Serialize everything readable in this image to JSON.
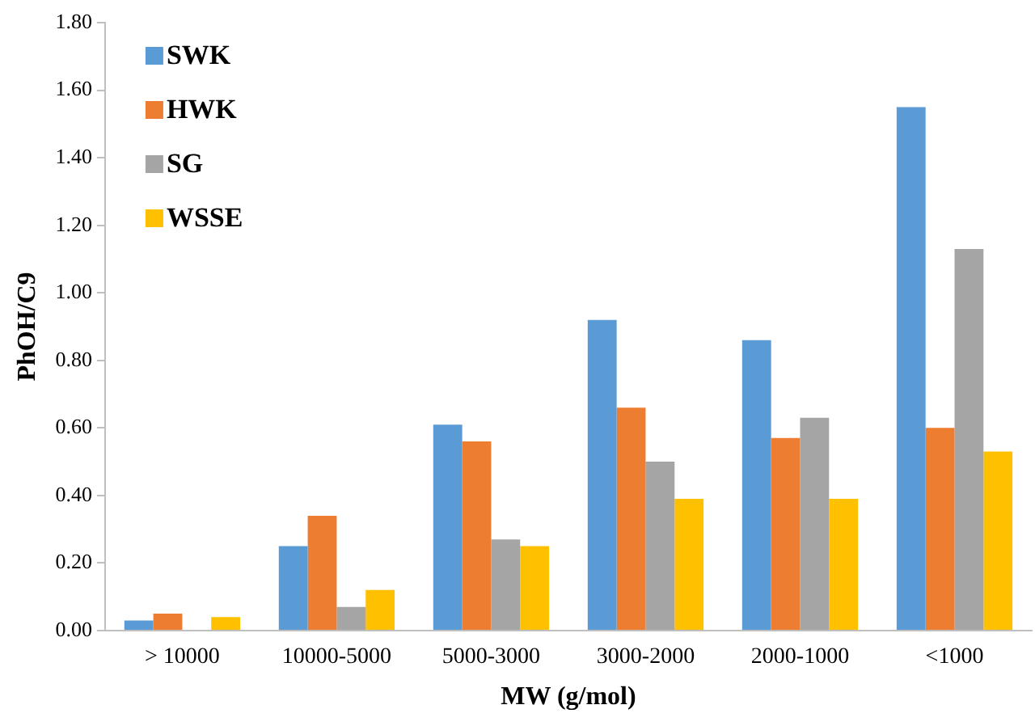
{
  "chart_data": {
    "type": "bar",
    "xlabel": "MW (g/mol)",
    "ylabel": "PhOH/C9",
    "categories": [
      "> 10000",
      "10000-5000",
      "5000-3000",
      "3000-2000",
      "2000-1000",
      "<1000"
    ],
    "series": [
      {
        "name": "SWK",
        "color": "#5b9bd5",
        "values": [
          0.03,
          0.25,
          0.61,
          0.92,
          0.86,
          1.55
        ]
      },
      {
        "name": "HWK",
        "color": "#ed7d31",
        "values": [
          0.05,
          0.34,
          0.56,
          0.66,
          0.57,
          0.6
        ]
      },
      {
        "name": "SG",
        "color": "#a5a5a5",
        "values": [
          null,
          0.07,
          0.27,
          0.5,
          0.63,
          1.13
        ]
      },
      {
        "name": "WSSE",
        "color": "#ffc000",
        "values": [
          0.04,
          0.12,
          0.25,
          0.39,
          0.39,
          0.53
        ]
      }
    ],
    "ylim": [
      0,
      1.8
    ],
    "yticks": [
      {
        "value": 0,
        "label": "0.00"
      },
      {
        "value": 0.2,
        "label": "0.20"
      },
      {
        "value": 0.4,
        "label": "0.40"
      },
      {
        "value": 0.6,
        "label": "0.60"
      },
      {
        "value": 0.8,
        "label": "0.80"
      },
      {
        "value": 1.0,
        "label": "1.00"
      },
      {
        "value": 1.2,
        "label": "1.20"
      },
      {
        "value": 1.4,
        "label": "1.40"
      },
      {
        "value": 1.6,
        "label": "1.60"
      },
      {
        "value": 1.8,
        "label": "1.80"
      }
    ],
    "grid": false,
    "legend": "top left"
  }
}
